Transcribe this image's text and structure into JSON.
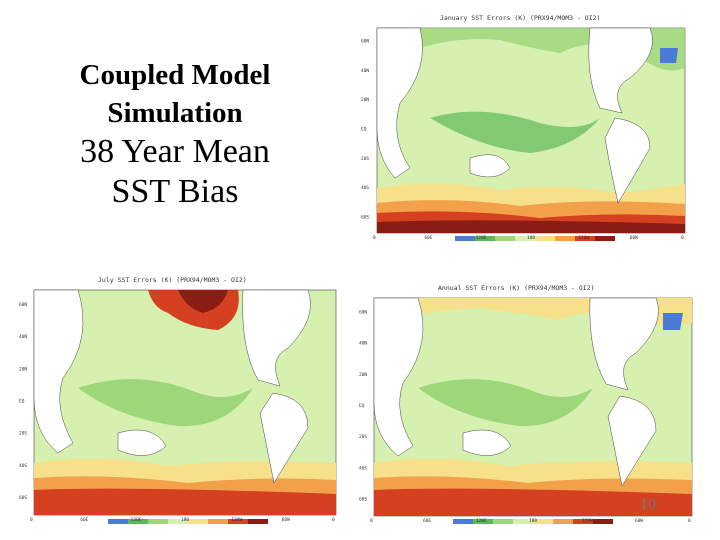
{
  "slide": {
    "title_line1": "Coupled Model",
    "title_line2": "Simulation",
    "subtitle_line1": "38 Year Mean",
    "subtitle_line2": "SST Bias",
    "page_number": "10"
  },
  "maps": {
    "january": {
      "title": "January SST Errors (K) (PRX94/MOM3 - OI2)"
    },
    "july": {
      "title": "July SST Errors (K) (PRX94/MOM3 - OI2)"
    },
    "annual": {
      "title": "Annual SST Errors (K) (PRX94/MOM3 - OI2)"
    },
    "lat_ticks": [
      "60N",
      "40N",
      "20N",
      "EQ",
      "20S",
      "40S",
      "60S"
    ],
    "lon_ticks": [
      "0",
      "60E",
      "120E",
      "180",
      "120W",
      "60W",
      "0"
    ],
    "colors": {
      "ocean_light": "#d6f0b0",
      "green": "#9ed67a",
      "green_dark": "#5cb85a",
      "yellow": "#f6e08a",
      "orange": "#f3a04a",
      "red": "#d44020",
      "dark_red": "#8a1c14",
      "land": "#ffffff"
    }
  }
}
